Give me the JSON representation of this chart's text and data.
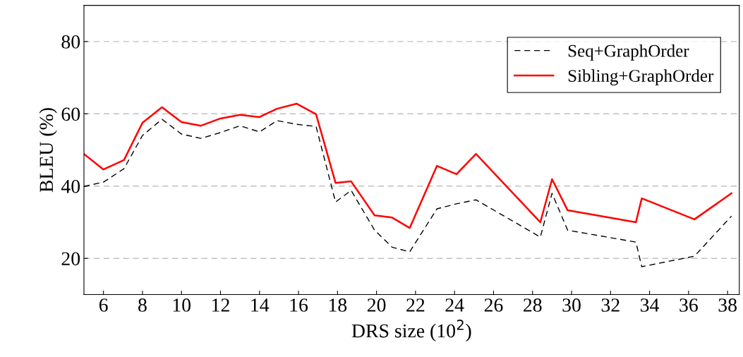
{
  "chart_data": {
    "type": "line",
    "xlabel": "DRS size (10$^{2}$)",
    "ylabel": "BLEU (%)",
    "x": [
      5.0,
      6,
      7.05,
      8,
      9,
      10,
      11,
      12,
      13,
      14,
      14.9,
      15.9,
      16.9,
      17.9,
      18.7,
      19.9,
      20.8,
      21.7,
      23.1,
      24.1,
      25.1,
      28.4,
      29.0,
      29.8,
      33.3,
      33.6,
      36.3,
      38.2
    ],
    "series": [
      {
        "name": "Seq+GraphOrder",
        "color": "#000000",
        "line_style": "dashed",
        "values": [
          39.9,
          41.1,
          44.8,
          54.0,
          58.5,
          54.4,
          53.2,
          54.8,
          56.7,
          55.0,
          58.1,
          57.1,
          56.5,
          35.6,
          38.8,
          27.8,
          23.1,
          21.8,
          33.7,
          35.1,
          36.2,
          25.9,
          38.0,
          27.8,
          24.5,
          17.7,
          20.6,
          31.7
        ]
      },
      {
        "name": "Sibling+GraphOrder",
        "color": "#ff0000",
        "line_style": "solid",
        "values": [
          48.9,
          44.6,
          47.2,
          57.5,
          61.8,
          57.7,
          56.7,
          58.7,
          59.7,
          59.1,
          61.4,
          62.8,
          59.9,
          40.9,
          41.3,
          31.9,
          31.3,
          28.4,
          45.6,
          43.3,
          48.9,
          30.0,
          41.9,
          33.3,
          30.0,
          36.6,
          30.8,
          38.0
        ]
      }
    ],
    "xlim": [
      5,
      38.6
    ],
    "ylim": [
      10,
      90
    ],
    "xticks": [
      6,
      8,
      10,
      12,
      14,
      16,
      18,
      20,
      22,
      24,
      26,
      28,
      30,
      32,
      34,
      36,
      38
    ],
    "yticks": [
      20,
      40,
      60,
      80
    ],
    "grid": "y",
    "legend": "top right",
    "marker": "none"
  }
}
